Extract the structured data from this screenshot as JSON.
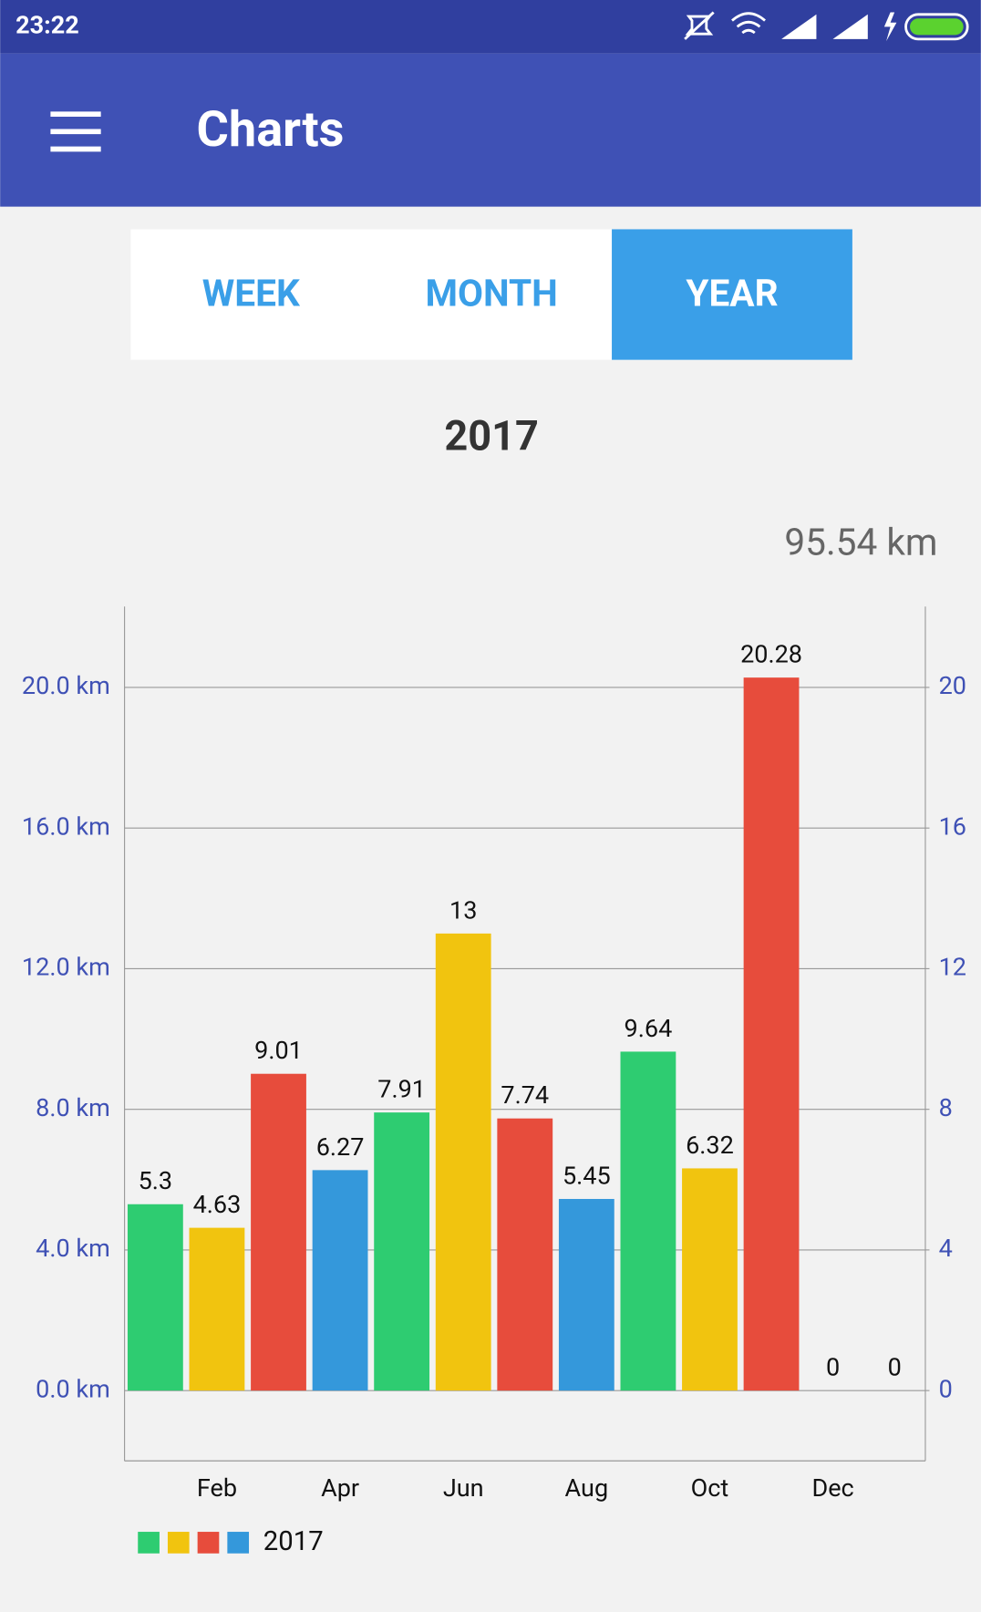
{
  "status_bar": {
    "time": "23:22"
  },
  "toolbar": {
    "title": "Charts"
  },
  "tabs": [
    "WEEK",
    "MONTH",
    "YEAR"
  ],
  "selected_tab": 2,
  "period": "2017",
  "total": "95.54 km",
  "chart_data": {
    "type": "bar",
    "categories": [
      null,
      "Feb",
      null,
      "Apr",
      null,
      "Jun",
      null,
      "Aug",
      null,
      "Oct",
      null,
      "Dec",
      null
    ],
    "series": [
      {
        "name": "2017",
        "colors": [
          "#2ecc71",
          "#f1c40f",
          "#e74c3c",
          "#3498db"
        ],
        "values": [
          5.3,
          4.63,
          9.01,
          6.27,
          7.91,
          13,
          7.74,
          5.45,
          9.64,
          6.32,
          20.28,
          0,
          0
        ]
      }
    ],
    "ylim": [
      -2,
      22.3
    ],
    "yticks": [
      {
        "value": 0,
        "label": "0.0 km"
      },
      {
        "value": 4,
        "label": "4.0 km"
      },
      {
        "value": 8,
        "label": "8.0 km"
      },
      {
        "value": 12,
        "label": "12.0 km"
      },
      {
        "value": 16,
        "label": "16.0 km"
      },
      {
        "value": 20,
        "label": "20.0 km"
      }
    ],
    "y2lim": [
      -2,
      22.3
    ],
    "y2ticks": [
      0,
      4,
      8,
      12,
      16,
      20
    ],
    "grid": true,
    "legend": "bottom-left"
  }
}
